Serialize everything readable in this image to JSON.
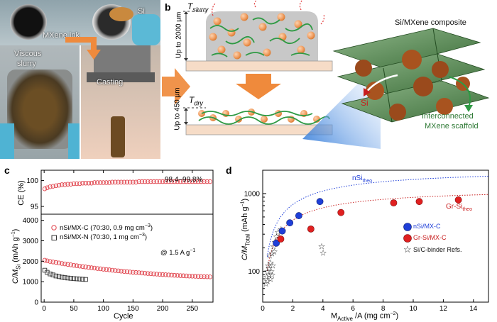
{
  "panels": {
    "a": "a",
    "b": "b",
    "c": "c",
    "d": "d"
  },
  "panel_a": {
    "si": "Si",
    "ink": "MXene ink",
    "slurry_1": "Viscous",
    "slurry_2": "slurry",
    "casting": "Casting"
  },
  "panel_b": {
    "t_slurry": "T",
    "t_slurry_sub": "slurry",
    "t_dry": "T",
    "t_dry_sub": "dry",
    "height_top": "Up to 2000 µm",
    "height_bottom": "Up to 450 µm",
    "composite_title": "Si/MXene composite",
    "si_label": "Si",
    "scaffold_1": "Interconnected",
    "scaffold_2": "MXene scaffold"
  },
  "chart_data": [
    {
      "type": "scatter",
      "panel": "c-top",
      "ylabel": "CE (%)",
      "yticks": [
        "95",
        "100"
      ],
      "ylim": [
        93.5,
        102
      ],
      "annotation": "98.4–99.8%",
      "series": [
        {
          "name": "nSi/MX-C",
          "color": "#e0434c",
          "x": [
            1,
            5,
            10,
            15,
            20,
            25,
            30,
            35,
            40,
            45,
            50,
            55,
            60,
            65,
            70,
            75,
            80,
            85,
            90,
            95,
            100,
            105,
            110,
            115,
            120,
            125,
            130,
            135,
            140,
            145,
            150,
            155,
            160,
            165,
            170,
            175,
            180,
            185,
            190,
            195,
            200,
            205,
            210,
            215,
            220,
            225,
            230,
            235,
            240,
            245,
            250,
            255,
            260,
            265,
            270,
            275,
            280
          ],
          "values": [
            98.4,
            98.6,
            98.8,
            98.9,
            99.0,
            99.1,
            99.2,
            99.2,
            99.3,
            99.3,
            99.4,
            99.4,
            99.4,
            99.5,
            99.5,
            99.5,
            99.5,
            99.6,
            99.6,
            99.6,
            99.6,
            99.6,
            99.6,
            99.7,
            99.7,
            99.7,
            99.7,
            99.7,
            99.7,
            99.7,
            99.7,
            99.7,
            99.8,
            99.8,
            99.8,
            99.8,
            99.8,
            99.8,
            99.8,
            99.8,
            99.8,
            99.8,
            99.8,
            99.8,
            99.8,
            99.8,
            99.8,
            99.8,
            99.8,
            99.8,
            99.8,
            99.8,
            99.8,
            99.8,
            99.8,
            99.8,
            99.8
          ]
        }
      ]
    },
    {
      "type": "scatter",
      "panel": "c-bottom",
      "xlabel": "Cycle",
      "ylabel": "C/M",
      "ylabel_sub": "Si",
      "ylabel_unit": " (mAh g",
      "ylabel_sup": "−1",
      "ylabel_close": ")",
      "xticks": [
        "0",
        "50",
        "100",
        "150",
        "200",
        "250"
      ],
      "xlim": [
        -5,
        285
      ],
      "yticks": [
        "0",
        "1000",
        "2000",
        "3000",
        "4000"
      ],
      "ylim": [
        0,
        4300
      ],
      "annotation": "@ 1.5 A g",
      "annotation_sup": "−1",
      "series": [
        {
          "name": "nSi/MX-C (70:30, 0.9 mg cm",
          "name_sup": "−3",
          "name_close": ")",
          "marker": "circle",
          "color": "#e0434c",
          "x": [
            1,
            5,
            10,
            15,
            20,
            25,
            30,
            35,
            40,
            45,
            50,
            55,
            60,
            65,
            70,
            75,
            80,
            85,
            90,
            95,
            100,
            105,
            110,
            115,
            120,
            125,
            130,
            135,
            140,
            145,
            150,
            155,
            160,
            165,
            170,
            175,
            180,
            185,
            190,
            195,
            200,
            205,
            210,
            215,
            220,
            225,
            230,
            235,
            240,
            245,
            250,
            255,
            260,
            265,
            270,
            275,
            280
          ],
          "values": [
            2050,
            2020,
            1990,
            1965,
            1940,
            1915,
            1890,
            1870,
            1845,
            1825,
            1800,
            1780,
            1760,
            1740,
            1720,
            1700,
            1680,
            1665,
            1645,
            1630,
            1610,
            1595,
            1580,
            1560,
            1545,
            1530,
            1515,
            1500,
            1490,
            1475,
            1460,
            1450,
            1440,
            1425,
            1415,
            1400,
            1390,
            1380,
            1370,
            1360,
            1350,
            1340,
            1330,
            1320,
            1312,
            1305,
            1298,
            1290,
            1282,
            1275,
            1270,
            1264,
            1258,
            1252,
            1246,
            1240,
            1235
          ]
        },
        {
          "name": "nSi/MX-N (70:30, 1 mg cm",
          "name_sup": "−3",
          "name_close": ")",
          "marker": "square",
          "color": "#333333",
          "x": [
            1,
            5,
            10,
            15,
            20,
            25,
            30,
            35,
            40,
            45,
            50,
            55,
            60,
            65,
            70
          ],
          "values": [
            1560,
            1460,
            1380,
            1330,
            1280,
            1250,
            1220,
            1200,
            1180,
            1165,
            1150,
            1140,
            1130,
            1120,
            1110
          ]
        }
      ]
    },
    {
      "type": "scatter",
      "panel": "d",
      "xlabel": "M",
      "xlabel_sub": "Active",
      "xlabel_rest": " /A (mg cm",
      "xlabel_sup": "−2",
      "xlabel_close": ")",
      "ylabel": "C/M",
      "ylabel_sub": "Total",
      "ylabel_unit": " (mAh g",
      "ylabel_sup": "−1",
      "ylabel_close": ")",
      "xticks": [
        "0",
        "2",
        "4",
        "6",
        "8",
        "10",
        "12",
        "14"
      ],
      "xlim": [
        0,
        15
      ],
      "yticks": [
        "100",
        "1000"
      ],
      "ylim": [
        40,
        2000
      ],
      "yscale": "log",
      "curve_labels": [
        {
          "text": "nSi",
          "sub": "theo"
        },
        {
          "text": "Gr-Si",
          "sub": "theo"
        }
      ],
      "series": [
        {
          "name": "nSi/MX-C",
          "color": "#1f3fd8",
          "x": [
            0.9,
            1.3,
            1.8,
            2.4,
            3.8
          ],
          "values": [
            230,
            330,
            420,
            520,
            790
          ]
        },
        {
          "name": "Gr-Si/MX-C",
          "color": "#e02020",
          "x": [
            1.2,
            3.2,
            5.2,
            8.7,
            10.4,
            13.0
          ],
          "values": [
            260,
            350,
            570,
            760,
            790,
            830
          ]
        },
        {
          "name": "Si/C-binder Refs.",
          "color": "#222222",
          "x": [
            0.2,
            0.25,
            0.3,
            0.3,
            0.35,
            0.4,
            0.4,
            0.45,
            0.5,
            0.5,
            0.55,
            0.6,
            0.6,
            0.65,
            0.7,
            0.75,
            0.8,
            0.9,
            1.0,
            1.1,
            1.2,
            3.9,
            4.0
          ],
          "values": [
            70,
            85,
            100,
            75,
            120,
            90,
            110,
            160,
            80,
            130,
            100,
            90,
            170,
            120,
            210,
            180,
            240,
            280,
            320,
            270,
            350,
            210,
            175
          ]
        }
      ]
    }
  ]
}
